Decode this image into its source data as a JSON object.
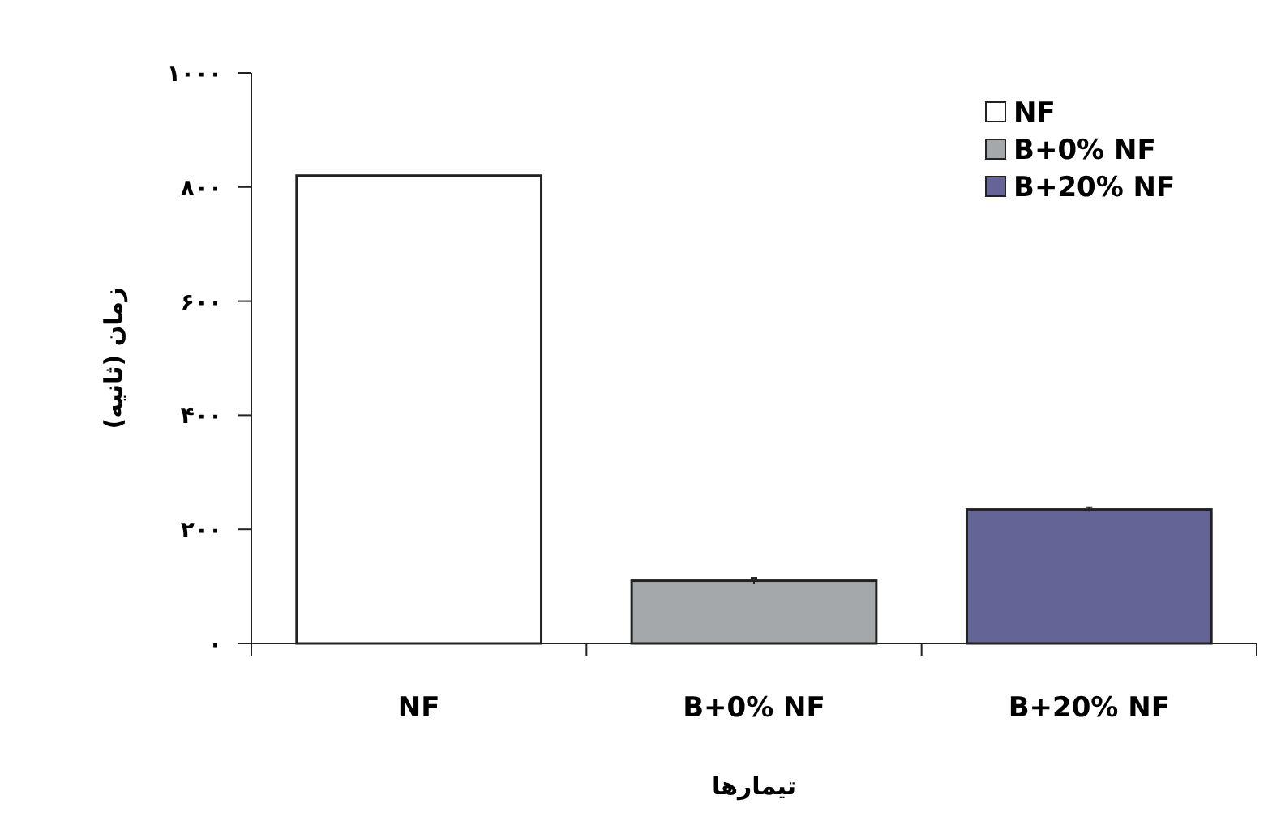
{
  "chart_data": {
    "type": "bar",
    "xlabel": "تیمارها",
    "ylabel": "زمان (ثانیه)",
    "categories": [
      "NF",
      "B+0% NF",
      "B+20% NF"
    ],
    "series": [
      {
        "name": "NF",
        "color": "#ffffff",
        "values": [
          820,
          null,
          null
        ]
      },
      {
        "name": "B+0% NF",
        "color": "#a5a8aa",
        "values": [
          null,
          110,
          null
        ],
        "errors": [
          null,
          5,
          null
        ]
      },
      {
        "name": "B+20% NF",
        "color": "#646496",
        "values": [
          null,
          null,
          235
        ],
        "errors": [
          null,
          null,
          4
        ]
      }
    ],
    "ylim": [
      0,
      1000
    ],
    "yticks": [
      {
        "value": 0,
        "label": "۰"
      },
      {
        "value": 200,
        "label": "۲۰۰"
      },
      {
        "value": 400,
        "label": "۴۰۰"
      },
      {
        "value": 600,
        "label": "۶۰۰"
      },
      {
        "value": 800,
        "label": "۸۰۰"
      },
      {
        "value": 1000,
        "label": "۱۰۰۰"
      }
    ],
    "legend": "top right"
  }
}
